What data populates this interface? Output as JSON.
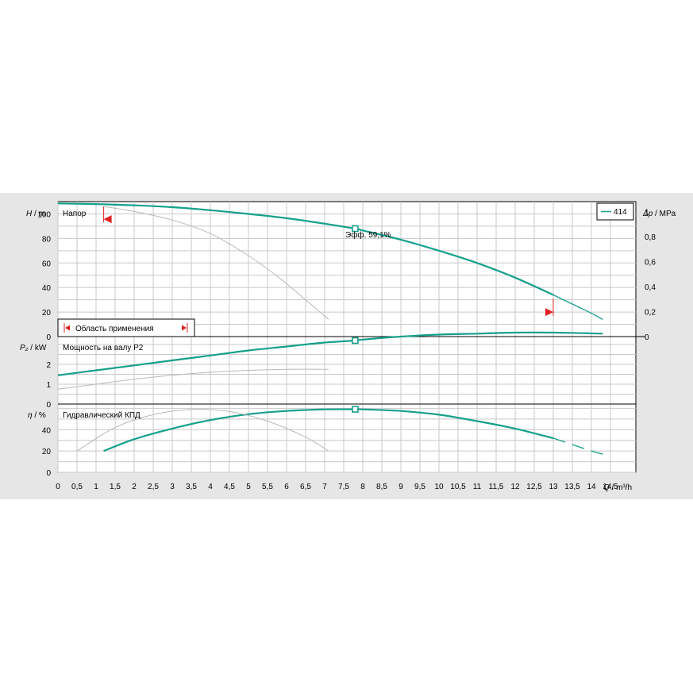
{
  "chart_data": {
    "type": "line",
    "x_axis": {
      "label_symbol": "Q",
      "label_unit": " / m³/h",
      "min": 0,
      "max": 14.5,
      "step": 0.5,
      "tick_labels": [
        "0",
        "0,5",
        "1",
        "1,5",
        "2",
        "2,5",
        "3",
        "3,5",
        "4",
        "4,5",
        "5",
        "5,5",
        "6",
        "6,5",
        "7",
        "7,5",
        "8",
        "8,5",
        "9",
        "9,5",
        "10",
        "10,5",
        "11",
        "11,5",
        "12",
        "12,5",
        "13",
        "13,5",
        "14",
        "14,5"
      ]
    },
    "panels": [
      {
        "id": "head",
        "title": "Напор",
        "ylabel_symbol": "H",
        "ylabel_unit": " / m",
        "ylim": [
          0,
          110
        ],
        "yticks": [
          0,
          20,
          40,
          60,
          80,
          100
        ],
        "ytick_labels": [
          "0",
          "20",
          "40",
          "60",
          "80",
          "100"
        ],
        "right_axis": {
          "label_symbol": "Δp",
          "label_unit": " / MPa",
          "ticks": [
            0,
            0.2,
            0.4,
            0.6,
            0.8,
            1.0
          ],
          "tick_labels": [
            "0",
            "0,2",
            "0,4",
            "0,6",
            "0,8",
            "1"
          ]
        },
        "series": [
          {
            "role": "main",
            "x": [
              0,
              1,
              2,
              3,
              4,
              5,
              6,
              7,
              7.8,
              8,
              9,
              10,
              11,
              12,
              13
            ],
            "y": [
              108.5,
              108,
              107,
              105.5,
              103,
              100,
              96.5,
              92,
              88,
              86.5,
              79,
              70,
              60,
              48,
              34
            ]
          },
          {
            "role": "main-extension",
            "x": [
              13,
              13.5,
              14,
              14.3
            ],
            "y": [
              34,
              26.5,
              19,
              14
            ]
          },
          {
            "role": "reference",
            "x": [
              1.2,
              2,
              3,
              4,
              5,
              5.8,
              6.5,
              7.1
            ],
            "y": [
              106,
              102,
              95,
              84,
              66,
              48,
              30,
              14
            ]
          }
        ],
        "operating_point": {
          "x": 7.8,
          "y": 88,
          "label": "Эфф.  59,1%"
        },
        "application_range": {
          "label": "Область применения",
          "qmin": 1.2,
          "qmax": 13,
          "qmin_head": 106,
          "qmax_head": 31
        }
      },
      {
        "id": "power",
        "title": "Мощность на валу P2",
        "ylabel_symbol": "P₂",
        "ylabel_unit": " / kW",
        "ylim": [
          0,
          3.4
        ],
        "yticks": [
          0,
          1,
          2
        ],
        "ytick_labels": [
          "0",
          "1",
          "2"
        ],
        "series": [
          {
            "role": "main",
            "x": [
              0,
              1,
              2,
              3,
              4,
              5,
              6,
              7,
              7.8,
              8,
              9,
              10,
              11,
              12,
              13,
              14.3
            ],
            "y": [
              1.45,
              1.7,
              1.95,
              2.2,
              2.45,
              2.7,
              2.9,
              3.1,
              3.2,
              3.25,
              3.4,
              3.5,
              3.55,
              3.6,
              3.6,
              3.55
            ]
          },
          {
            "role": "reference",
            "x": [
              0,
              1,
              2,
              3,
              4,
              5,
              6,
              7.1
            ],
            "y": [
              0.75,
              1.0,
              1.25,
              1.45,
              1.6,
              1.7,
              1.75,
              1.75
            ]
          }
        ],
        "operating_point": {
          "x": 7.8,
          "y": 3.2
        }
      },
      {
        "id": "efficiency",
        "title": "Гидравлический КПД",
        "ylabel_symbol": "η",
        "ylabel_unit": " / %",
        "ylim": [
          0,
          64
        ],
        "yticks": [
          0,
          20,
          40
        ],
        "ytick_labels": [
          "0",
          "20",
          "40"
        ],
        "series": [
          {
            "role": "main",
            "x": [
              1.2,
              2,
              3,
              4,
              5,
              6,
              7,
              7.8,
              8,
              9,
              10,
              11,
              12,
              13
            ],
            "y": [
              20,
              31,
              41,
              49,
              54.5,
              57.5,
              59,
              59.1,
              59,
              57.5,
              54,
              48,
              41,
              32
            ]
          },
          {
            "role": "main-extension",
            "x": [
              13,
              13.5,
              14,
              14.3
            ],
            "y": [
              32,
              26,
              20,
              17
            ]
          },
          {
            "role": "reference",
            "x": [
              0.5,
              1.5,
              2.5,
              3.5,
              4.5,
              5.5,
              6.5,
              7.1
            ],
            "y": [
              20,
              42,
              54,
              59,
              57,
              48,
              33,
              20
            ]
          }
        ],
        "operating_point": {
          "x": 7.8,
          "y": 59.1
        }
      }
    ],
    "legend": {
      "entries": [
        {
          "name": "414"
        }
      ],
      "placement": "top-right"
    },
    "colors": {
      "main": "#16a08c",
      "reference": "#b9b9b9",
      "range": "#e02020",
      "grid": "#c8c8c8",
      "background": "#e6e6e6"
    }
  }
}
